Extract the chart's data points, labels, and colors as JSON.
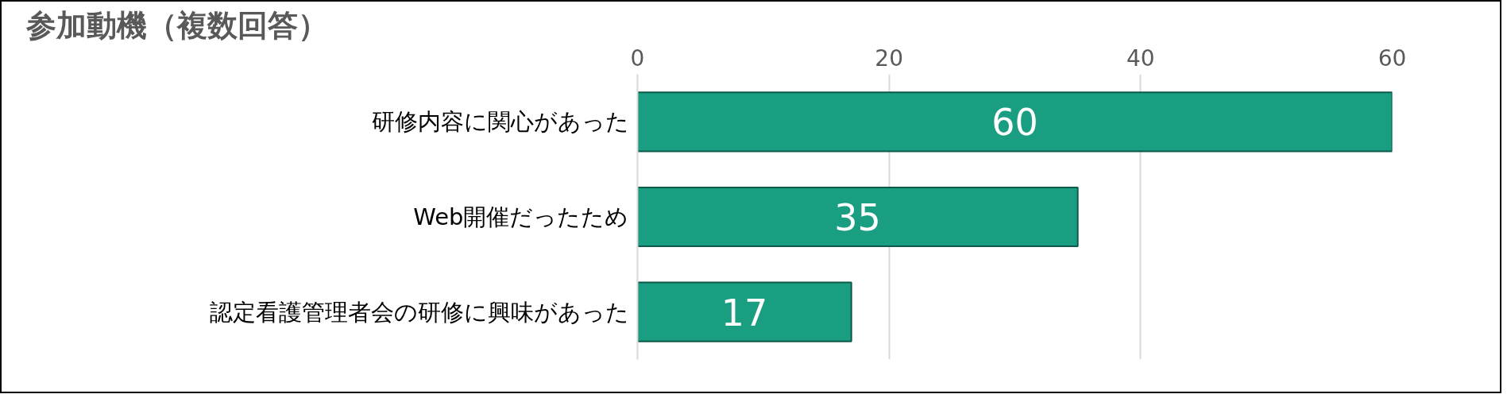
{
  "chart_data": {
    "type": "bar",
    "orientation": "horizontal",
    "title": "参加動機（複数回答）",
    "categories": [
      "研修内容に関心があった",
      "Web開催だったため",
      "認定看護管理者会の研修に興味があった"
    ],
    "values": [
      60,
      35,
      17
    ],
    "color": "#1a9e82",
    "xlim": [
      0,
      60
    ],
    "xticks": [
      0,
      20,
      40,
      60
    ],
    "grid": "x",
    "data_labels": true
  }
}
